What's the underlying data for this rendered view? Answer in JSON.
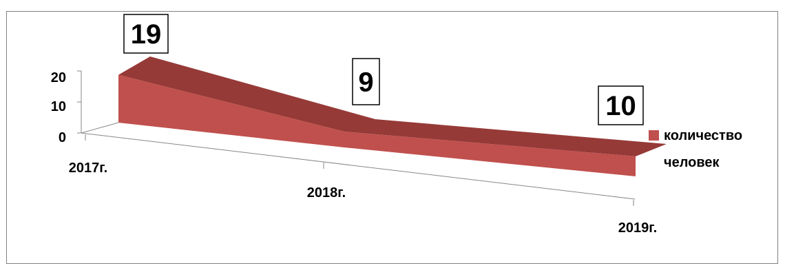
{
  "chart_data": {
    "type": "area",
    "title": "",
    "categories": [
      "2017г.",
      "2018г.",
      "2019г."
    ],
    "series": [
      {
        "name": "количество человек",
        "values": [
          19,
          9,
          10
        ],
        "color": "#c0504d",
        "top_color": "#963a38"
      }
    ],
    "data_labels": [
      "19",
      "9",
      "10"
    ],
    "ylim": [
      0,
      20
    ],
    "yticks": [
      "0",
      "10",
      "20"
    ],
    "legend": {
      "position": "right",
      "line1": "количество",
      "line2": "человек"
    },
    "grid": false,
    "style": "3d"
  }
}
